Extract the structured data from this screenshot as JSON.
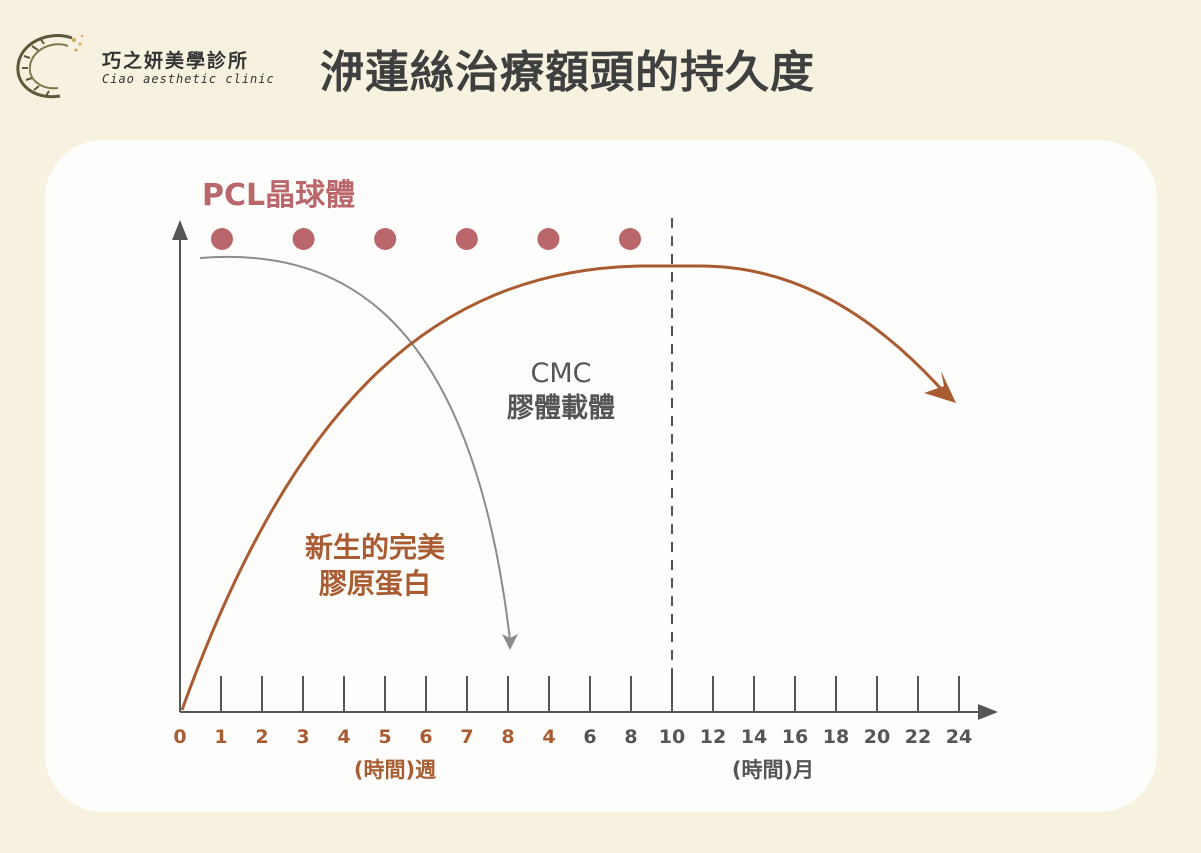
{
  "header": {
    "logo_name": "巧之妍美學診所",
    "logo_subtitle": "Ciao aesthetic clinic",
    "title": "洢蓮絲治療額頭的持久度"
  },
  "diagram": {
    "pcl_label": "PCL晶球體",
    "pcl_dot_count": 6,
    "cmc_label_line1": "CMC",
    "cmc_label_line2": "膠體載體",
    "collagen_label_line1": "新生的完美",
    "collagen_label_line2": "膠原蛋白",
    "weeks_unit_label": "(時間)週",
    "months_unit_label": "(時間)月",
    "weeks_ticks": [
      "0",
      "1",
      "2",
      "3",
      "4",
      "5",
      "6",
      "7",
      "8"
    ],
    "months_ticks": [
      "4",
      "6",
      "8",
      "10",
      "12",
      "14",
      "16",
      "18",
      "20",
      "22",
      "24"
    ]
  },
  "colors": {
    "pcl": "#b9676b",
    "collagen": "#a95c32",
    "cmc": "#8c8c8c",
    "axis": "#555555",
    "title": "#3f3f3f",
    "background": "#f7f1df",
    "card": "#fdfdfb"
  }
}
